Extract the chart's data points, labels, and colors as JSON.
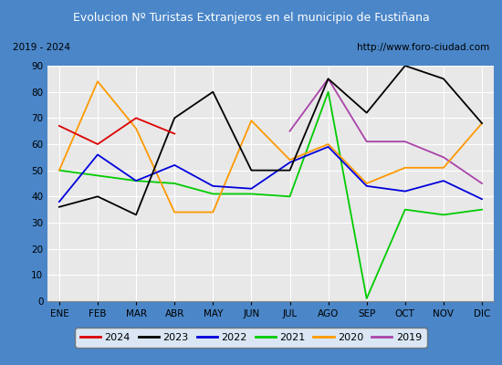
{
  "title": "Evolucion Nº Turistas Extranjeros en el municipio de Fustiñana",
  "subtitle_left": "2019 - 2024",
  "subtitle_right": "http://www.foro-ciudad.com",
  "months": [
    "ENE",
    "FEB",
    "MAR",
    "ABR",
    "MAY",
    "JUN",
    "JUL",
    "AGO",
    "SEP",
    "OCT",
    "NOV",
    "DIC"
  ],
  "series": {
    "2024": [
      67,
      60,
      70,
      64,
      null,
      null,
      null,
      null,
      null,
      null,
      null,
      null
    ],
    "2023": [
      36,
      40,
      33,
      70,
      80,
      50,
      50,
      85,
      72,
      90,
      85,
      68
    ],
    "2022": [
      38,
      56,
      46,
      52,
      44,
      43,
      53,
      59,
      44,
      42,
      46,
      39
    ],
    "2021": [
      50,
      48,
      46,
      45,
      41,
      41,
      40,
      80,
      1,
      35,
      33,
      35
    ],
    "2020": [
      50,
      84,
      66,
      34,
      34,
      69,
      54,
      60,
      45,
      51,
      51,
      68
    ],
    "2019": [
      null,
      null,
      null,
      null,
      null,
      null,
      65,
      85,
      61,
      61,
      55,
      45
    ]
  },
  "colors": {
    "2024": "#dd0000",
    "2023": "#000000",
    "2022": "#0000dd",
    "2021": "#00cc00",
    "2020": "#ff9900",
    "2019": "#aa44aa"
  },
  "linestyles": {
    "2024": "-",
    "2023": "-",
    "2022": "-",
    "2021": "-",
    "2020": "-",
    "2019": "-"
  },
  "ylim": [
    0,
    90
  ],
  "yticks": [
    0,
    10,
    20,
    30,
    40,
    50,
    60,
    70,
    80,
    90
  ],
  "title_bg": "#4a86c8",
  "title_color": "#ffffff",
  "plot_bg": "#e8e8e8",
  "header_bg": "#d4d4d4",
  "border_color": "#4a86c8"
}
